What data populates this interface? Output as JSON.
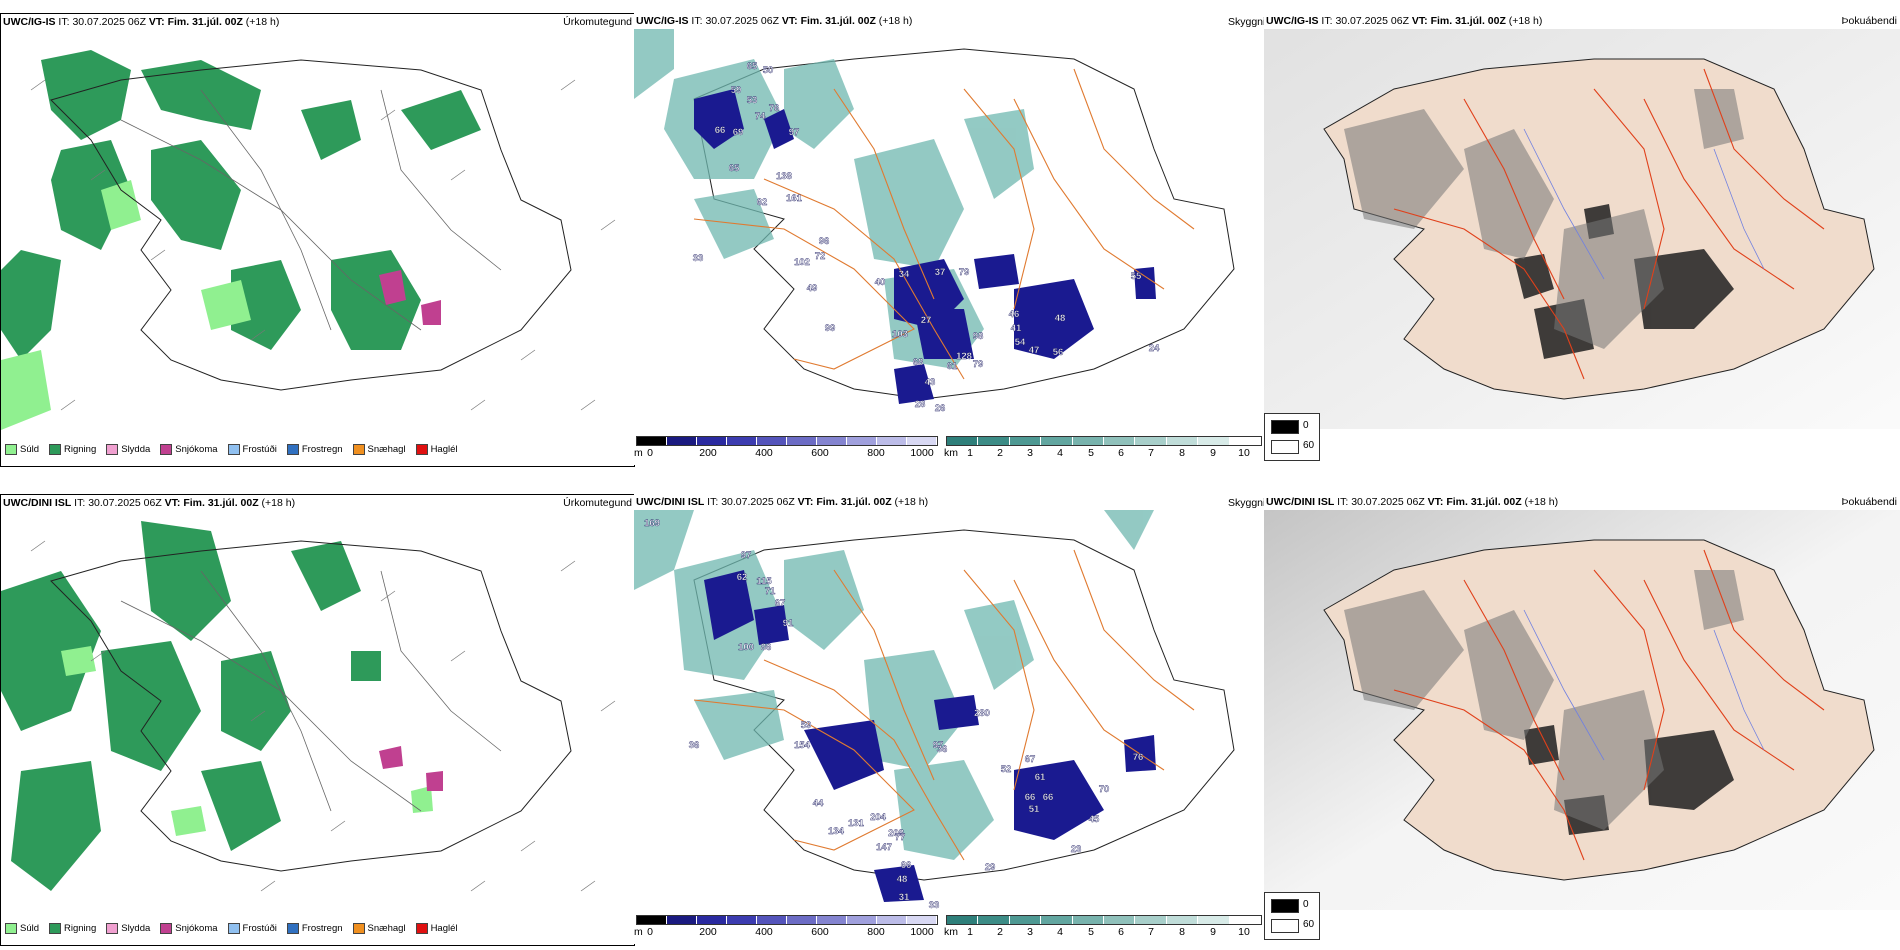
{
  "rows": [
    {
      "model": "UWC/IG-IS",
      "it_label": "IT:",
      "it_value": "30.07.2025 06Z",
      "vt_label": "VT:",
      "vt_value": "Fim. 31.júl. 00Z",
      "lead": "(+18 h)",
      "left_title": "Úrkomutegund",
      "mid_title": "Skyggni",
      "right_title": "Þokuábendi",
      "labels": [
        "65",
        "50",
        "59",
        "53",
        "76",
        "74",
        "97",
        "69",
        "66",
        "65",
        "138",
        "161",
        "62",
        "96",
        "33",
        "102",
        "72",
        "40",
        "34",
        "37",
        "79",
        "55",
        "46",
        "48",
        "41",
        "54",
        "47",
        "56",
        "103",
        "27",
        "98",
        "128",
        "68",
        "61",
        "79",
        "24",
        "43",
        "28",
        "26",
        "49",
        "99"
      ]
    },
    {
      "model": "UWC/DINI ISL",
      "it_label": "IT:",
      "it_value": "30.07.2025 06Z",
      "vt_label": "VT:",
      "vt_value": "Fim. 31.júl. 00Z",
      "lead": "(+18 h)",
      "left_title": "Úrkomutegund",
      "mid_title": "Skyggni",
      "right_title": "Þokuábendi",
      "labels": [
        "169",
        "97",
        "62",
        "115",
        "71",
        "67",
        "91",
        "100",
        "86",
        "59",
        "154",
        "36",
        "97",
        "36",
        "280",
        "67",
        "52",
        "61",
        "66",
        "66",
        "51",
        "45",
        "70",
        "76",
        "204",
        "208",
        "147",
        "77",
        "66",
        "48",
        "31",
        "33",
        "23",
        "29",
        "44",
        "131",
        "134"
      ]
    }
  ],
  "precip_legend": [
    {
      "label": "Súld",
      "color": "#90f090"
    },
    {
      "label": "Rigning",
      "color": "#2e9a5a"
    },
    {
      "label": "Slydda",
      "color": "#f0a0d0"
    },
    {
      "label": "Snjókoma",
      "color": "#c04090"
    },
    {
      "label": "Frostúði",
      "color": "#90c0f0"
    },
    {
      "label": "Frostregn",
      "color": "#3070c0"
    },
    {
      "label": "Snæhagl",
      "color": "#f09020"
    },
    {
      "label": "Haglél",
      "color": "#e01010"
    }
  ],
  "cbar_m": {
    "unit": "m",
    "ticks": [
      "0",
      "200",
      "400",
      "600",
      "800",
      "1000"
    ]
  },
  "cbar_km": {
    "unit": "km",
    "ticks": [
      "1",
      "2",
      "3",
      "4",
      "5",
      "6",
      "7",
      "8",
      "9",
      "10"
    ]
  },
  "fog_legend": {
    "min": "0",
    "max": "60"
  },
  "colors": {
    "rain": "#2e9a5a",
    "drizzle": "#90f090",
    "snow": "#c04090",
    "lowvis": "#1a1a90",
    "vis": "#6fb8b0",
    "roads": "#e07a30",
    "fogdark": "#202020",
    "land": "#f0dccc"
  }
}
